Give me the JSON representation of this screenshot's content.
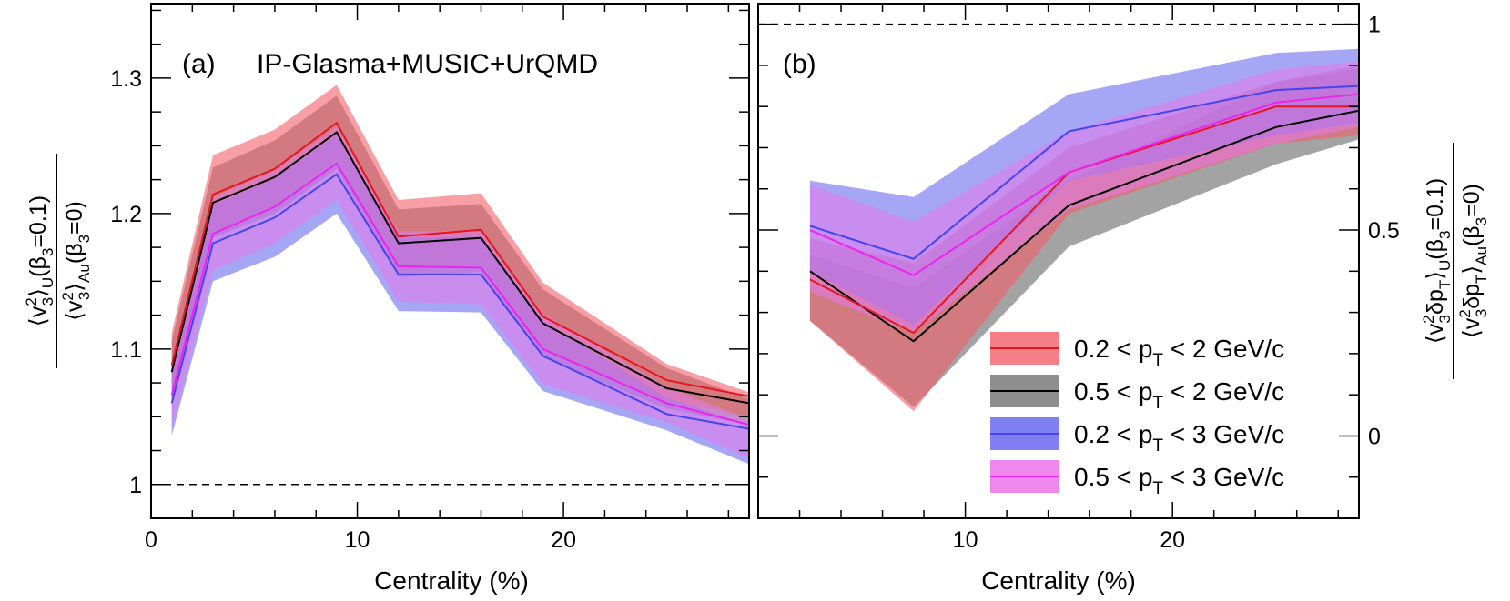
{
  "chart_data": [
    {
      "panel": "a",
      "type": "line",
      "label": "(a)",
      "model": "IP-Glasma+MUSIC+UrQMD",
      "xlabel": "Centrality (%)",
      "ylabel": "⟨v3²⟩U(β3=0.1) / ⟨v3²⟩Au(β3=0)",
      "xlim": [
        0,
        29
      ],
      "ylim": [
        0.975,
        1.355
      ],
      "x_ticks": [
        0,
        10,
        20
      ],
      "y_ticks": [
        1,
        1.1,
        1.2,
        1.3
      ],
      "y_tick_labels": [
        "1",
        "1.1",
        "1.2",
        "1.3"
      ],
      "reference_line": 1,
      "series": [
        {
          "name": "0.2 < pT < 2 GeV/c",
          "x": [
            1,
            3,
            6,
            9,
            12,
            16,
            19,
            25,
            29
          ],
          "values": [
            1.088,
            1.214,
            1.233,
            1.267,
            1.183,
            1.188,
            1.124,
            1.077,
            1.065
          ],
          "lower": [
            1.063,
            1.186,
            1.206,
            1.24,
            1.158,
            1.163,
            1.099,
            1.062,
            1.05
          ],
          "upper": [
            1.112,
            1.243,
            1.262,
            1.295,
            1.21,
            1.215,
            1.149,
            1.089,
            1.068
          ]
        },
        {
          "name": "0.5 < pT < 2 GeV/c",
          "x": [
            1,
            3,
            6,
            9,
            12,
            16,
            19,
            25,
            29
          ],
          "values": [
            1.083,
            1.208,
            1.227,
            1.26,
            1.178,
            1.182,
            1.119,
            1.071,
            1.06
          ],
          "lower": [
            1.06,
            1.182,
            1.2,
            1.233,
            1.153,
            1.157,
            1.094,
            1.056,
            1.044
          ],
          "upper": [
            1.106,
            1.234,
            1.254,
            1.287,
            1.203,
            1.207,
            1.144,
            1.086,
            1.063
          ]
        },
        {
          "name": "0.2 < pT < 3 GeV/c",
          "x": [
            1,
            3,
            6,
            9,
            12,
            16,
            19,
            25,
            29
          ],
          "values": [
            1.06,
            1.178,
            1.197,
            1.229,
            1.155,
            1.155,
            1.095,
            1.052,
            1.041
          ],
          "lower": [
            1.036,
            1.15,
            1.168,
            1.2,
            1.128,
            1.127,
            1.069,
            1.04,
            1.015
          ],
          "upper": [
            1.084,
            1.206,
            1.226,
            1.258,
            1.182,
            1.183,
            1.121,
            1.064,
            1.044
          ]
        },
        {
          "name": "0.5 < pT < 3 GeV/c",
          "x": [
            1,
            3,
            6,
            9,
            12,
            16,
            19,
            25,
            29
          ],
          "values": [
            1.066,
            1.185,
            1.205,
            1.237,
            1.161,
            1.16,
            1.1,
            1.06,
            1.044
          ],
          "lower": [
            1.042,
            1.158,
            1.178,
            1.21,
            1.135,
            1.133,
            1.074,
            1.046,
            1.019
          ],
          "upper": [
            1.09,
            1.212,
            1.232,
            1.264,
            1.187,
            1.187,
            1.126,
            1.072,
            1.048
          ]
        }
      ]
    },
    {
      "panel": "b",
      "type": "line",
      "label": "(b)",
      "xlabel": "Centrality (%)",
      "ylabel": "⟨v3²δpT⟩U(β3=0.1) / ⟨v3²δpT⟩Au(β3=0)",
      "xlim": [
        0,
        29
      ],
      "ylim": [
        -0.2,
        1.05
      ],
      "x_ticks": [
        10,
        20
      ],
      "y_ticks": [
        0,
        0.5,
        1
      ],
      "y_tick_labels": [
        "0",
        "0.5",
        "1"
      ],
      "reference_line": 1,
      "series": [
        {
          "name": "0.2 < pT < 2 GeV/c",
          "x": [
            2.5,
            7.5,
            15,
            25,
            29
          ],
          "values": [
            0.38,
            0.25,
            0.64,
            0.8,
            0.8
          ],
          "lower": [
            0.28,
            0.06,
            0.54,
            0.71,
            0.73
          ],
          "upper": [
            0.48,
            0.42,
            0.7,
            0.86,
            0.9
          ]
        },
        {
          "name": "0.5 < pT < 2 GeV/c",
          "x": [
            2.5,
            7.5,
            15,
            25,
            29
          ],
          "values": [
            0.4,
            0.23,
            0.56,
            0.75,
            0.79
          ],
          "lower": [
            0.28,
            0.07,
            0.46,
            0.66,
            0.72
          ],
          "upper": [
            0.44,
            0.36,
            0.62,
            0.86,
            0.89
          ]
        },
        {
          "name": "0.2 < pT < 3 GeV/c",
          "x": [
            2.5,
            7.5,
            15,
            25,
            29
          ],
          "values": [
            0.51,
            0.43,
            0.74,
            0.84,
            0.85
          ],
          "lower": [
            0.4,
            0.27,
            0.62,
            0.73,
            0.76
          ],
          "upper": [
            0.62,
            0.58,
            0.83,
            0.93,
            0.94
          ]
        },
        {
          "name": "0.5 < pT < 3 GeV/c",
          "x": [
            2.5,
            7.5,
            15,
            25,
            29
          ],
          "values": [
            0.5,
            0.39,
            0.64,
            0.81,
            0.83
          ],
          "lower": [
            0.35,
            0.25,
            0.55,
            0.71,
            0.75
          ],
          "upper": [
            0.61,
            0.52,
            0.74,
            0.89,
            0.91
          ]
        }
      ]
    }
  ],
  "legend": {
    "position": "bottom-right",
    "entries": [
      {
        "pre": "0.2 < p",
        "sub": "T",
        "post": " < 2 GeV/c",
        "line": "#e8141e",
        "fill": "#f47f86"
      },
      {
        "pre": "0.5 < p",
        "sub": "T",
        "post": " < 2 GeV/c",
        "line": "#000000",
        "fill": "#8e8e8e"
      },
      {
        "pre": "0.2 < p",
        "sub": "T",
        "post": " < 3 GeV/c",
        "line": "#4444ee",
        "fill": "#8080f2"
      },
      {
        "pre": "0.5 < p",
        "sub": "T",
        "post": " < 3 GeV/c",
        "line": "#ee22ee",
        "fill": "#ee88ee"
      }
    ]
  },
  "colors": {
    "line": [
      "#e8141e",
      "#000000",
      "#4444ee",
      "#ee22ee"
    ],
    "fill": [
      "#f25f67",
      "#6a6a6a",
      "#6f6ff2",
      "#e27ae8"
    ]
  }
}
